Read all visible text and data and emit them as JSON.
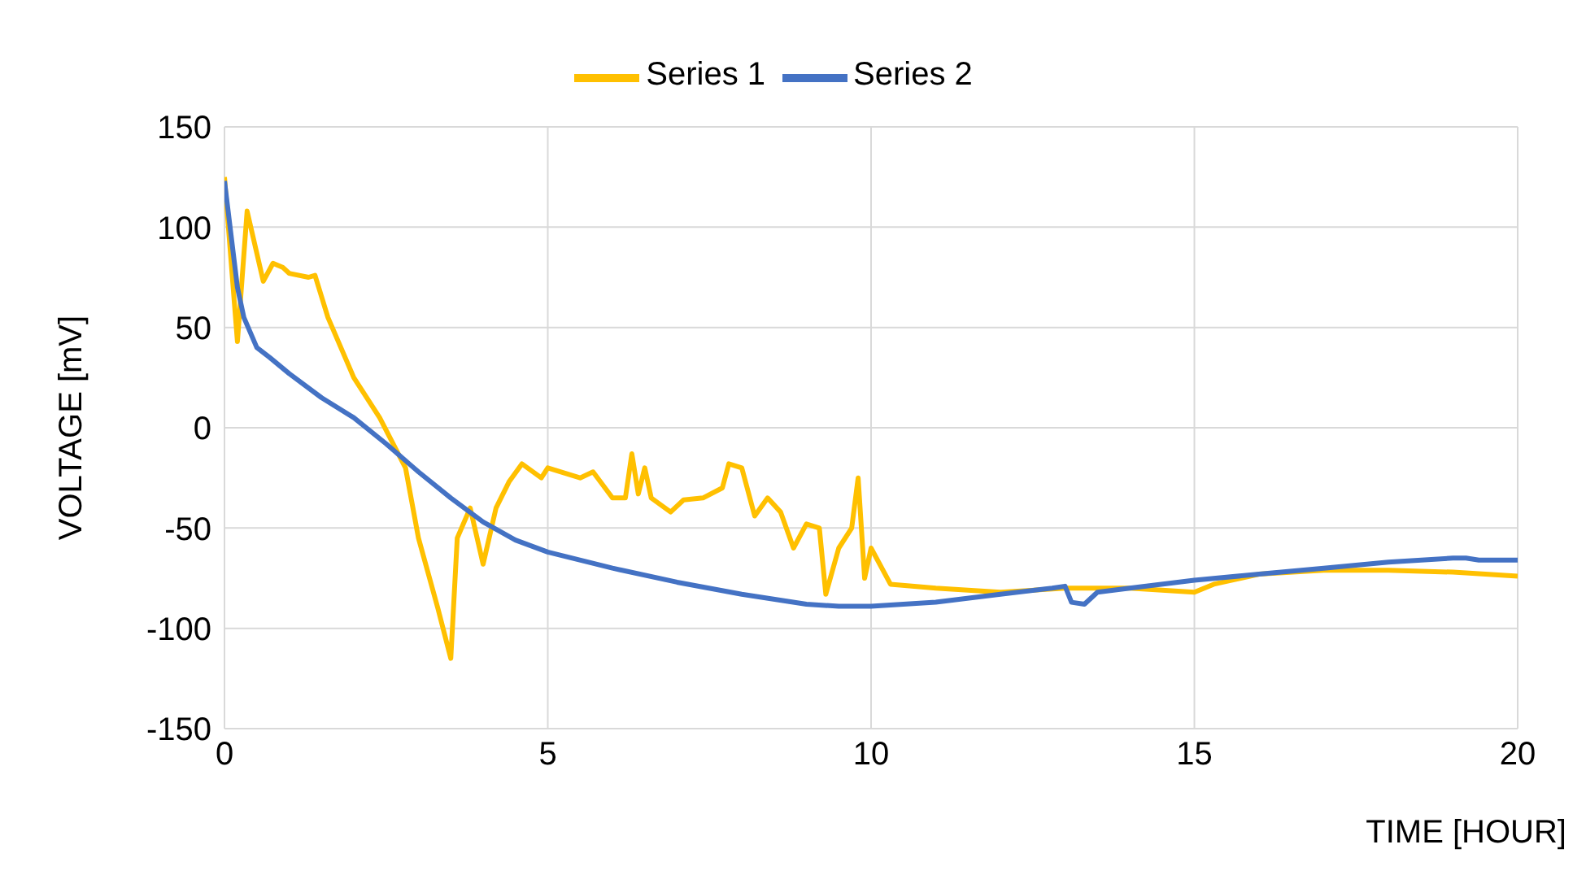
{
  "chart_data": {
    "type": "line",
    "xlabel": "TIME [HOUR]",
    "ylabel": "VOLTAGE [mV]",
    "xlim": [
      0,
      20
    ],
    "xticks": [
      0,
      5,
      10,
      15,
      20
    ],
    "ylim": [
      -150,
      150
    ],
    "yticks": [
      -150,
      -100,
      -50,
      0,
      50,
      100,
      150
    ],
    "grid": true,
    "legend": "top",
    "marker": "none",
    "line_style": "solid",
    "series": [
      {
        "name": "Series 1",
        "color": "#ffc000",
        "x": [
          0,
          0.2,
          0.35,
          0.6,
          0.75,
          0.9,
          1.0,
          1.3,
          1.4,
          1.6,
          2.0,
          2.4,
          2.8,
          3.0,
          3.3,
          3.5,
          3.6,
          3.8,
          4.0,
          4.2,
          4.4,
          4.6,
          4.9,
          5.0,
          5.5,
          5.7,
          6.0,
          6.2,
          6.3,
          6.4,
          6.5,
          6.6,
          6.9,
          7.1,
          7.4,
          7.7,
          7.8,
          8.0,
          8.2,
          8.4,
          8.6,
          8.8,
          9.0,
          9.2,
          9.3,
          9.5,
          9.7,
          9.8,
          9.9,
          10.0,
          10.3,
          11,
          12,
          13,
          14,
          15,
          15.3,
          16,
          17,
          18,
          19,
          19.5,
          20
        ],
        "values": [
          125,
          43,
          108,
          73,
          82,
          80,
          77,
          75,
          76,
          55,
          25,
          5,
          -20,
          -55,
          -90,
          -115,
          -55,
          -40,
          -68,
          -40,
          -27,
          -18,
          -25,
          -20,
          -25,
          -22,
          -35,
          -35,
          -13,
          -33,
          -20,
          -35,
          -42,
          -36,
          -35,
          -30,
          -18,
          -20,
          -44,
          -35,
          -42,
          -60,
          -48,
          -50,
          -83,
          -60,
          -50,
          -25,
          -75,
          -60,
          -78,
          -80,
          -82,
          -80,
          -80,
          -82,
          -78,
          -73,
          -71,
          -71,
          -72,
          -73,
          -74
        ]
      },
      {
        "name": "Series 2",
        "color": "#4472c4",
        "x": [
          0,
          0.2,
          0.3,
          0.5,
          0.7,
          1.0,
          1.5,
          2,
          2.5,
          3,
          3.5,
          4,
          4.5,
          5,
          6,
          7,
          8,
          9,
          9.5,
          10,
          11,
          12,
          12.8,
          13,
          13.1,
          13.3,
          13.5,
          14,
          15,
          16,
          17,
          18,
          19,
          19.2,
          19.4,
          20
        ],
        "values": [
          123,
          70,
          55,
          40,
          35,
          27,
          15,
          5,
          -8,
          -22,
          -35,
          -47,
          -56,
          -62,
          -70,
          -77,
          -83,
          -88,
          -89,
          -89,
          -87,
          -83,
          -80,
          -79,
          -87,
          -88,
          -82,
          -80,
          -76,
          -73,
          -70,
          -67,
          -65,
          -65,
          -66,
          -66
        ]
      }
    ]
  }
}
